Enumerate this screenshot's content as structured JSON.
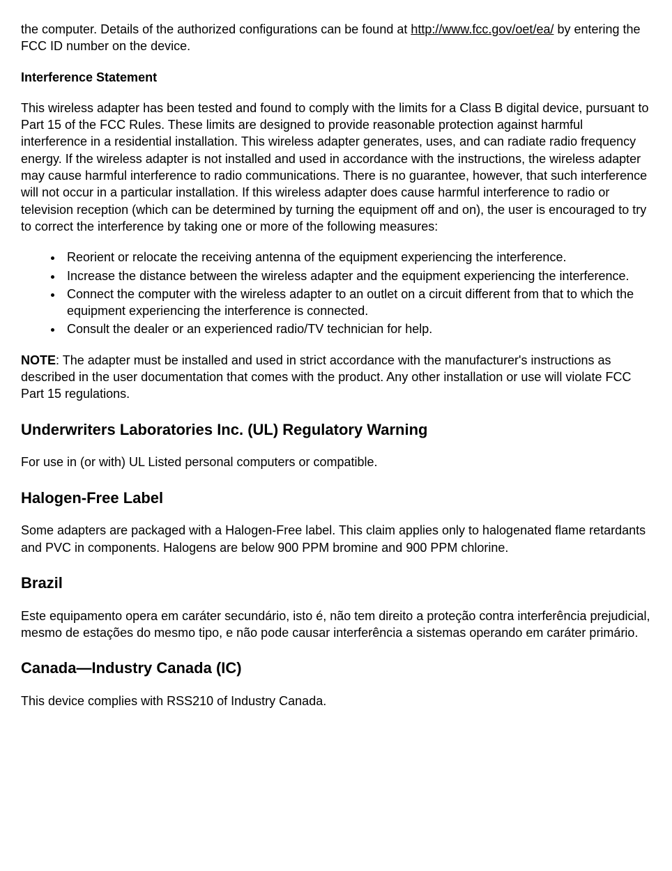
{
  "intro": {
    "line1": "the computer. Details of the authorized configurations can be found at ",
    "link_text": "http://www.fcc.gov/oet/ea/",
    "line2": " by entering the FCC ID number on the device."
  },
  "interference": {
    "heading": "Interference Statement",
    "body": "This wireless adapter has been tested and found to comply with the limits for a Class B digital device, pursuant to Part 15 of the FCC Rules. These limits are designed to provide reasonable protection against harmful interference in a residential installation. This wireless adapter generates, uses, and can radiate radio frequency energy. If the wireless adapter is not installed and used in accordance with the instructions, the wireless adapter may cause harmful interference to radio communications. There is no guarantee, however, that such interference will not occur in a particular installation. If this wireless adapter does cause harmful interference to radio or television reception (which can be determined by turning the equipment off and on), the user is encouraged to try to correct the interference by taking one or more of the following measures:",
    "bullets": [
      "Reorient or relocate the receiving antenna of the equipment experiencing the interference.",
      "Increase the distance between the wireless adapter and the equipment experiencing the interference.",
      "Connect the computer with the wireless adapter to an outlet on a circuit different from that to which the equipment experiencing the interference is connected.",
      "Consult the dealer or an experienced radio/TV technician for help."
    ],
    "note_label": "NOTE",
    "note_body": ": The adapter must be installed and used in strict accordance with the manufacturer's instructions as described in the user documentation that comes with the product. Any other installation or use will violate FCC Part 15 regulations."
  },
  "ul": {
    "heading": "Underwriters Laboratories Inc. (UL) Regulatory Warning",
    "body": "For use in (or with) UL Listed personal computers or compatible."
  },
  "halogen": {
    "heading": "Halogen-Free Label",
    "body": "Some adapters are packaged with a Halogen-Free label. This claim applies only to halogenated flame retardants and PVC in components. Halogens are below 900 PPM bromine and 900 PPM chlorine."
  },
  "brazil": {
    "heading": "Brazil",
    "body": "Este equipamento opera em caráter secundário, isto é, não tem direito a proteção contra interferência prejudicial, mesmo de estações do mesmo tipo, e não pode causar interferência a sistemas operando em caráter primário."
  },
  "canada": {
    "heading": "Canada—Industry Canada (IC)",
    "body": "This device complies with RSS210 of Industry Canada."
  }
}
